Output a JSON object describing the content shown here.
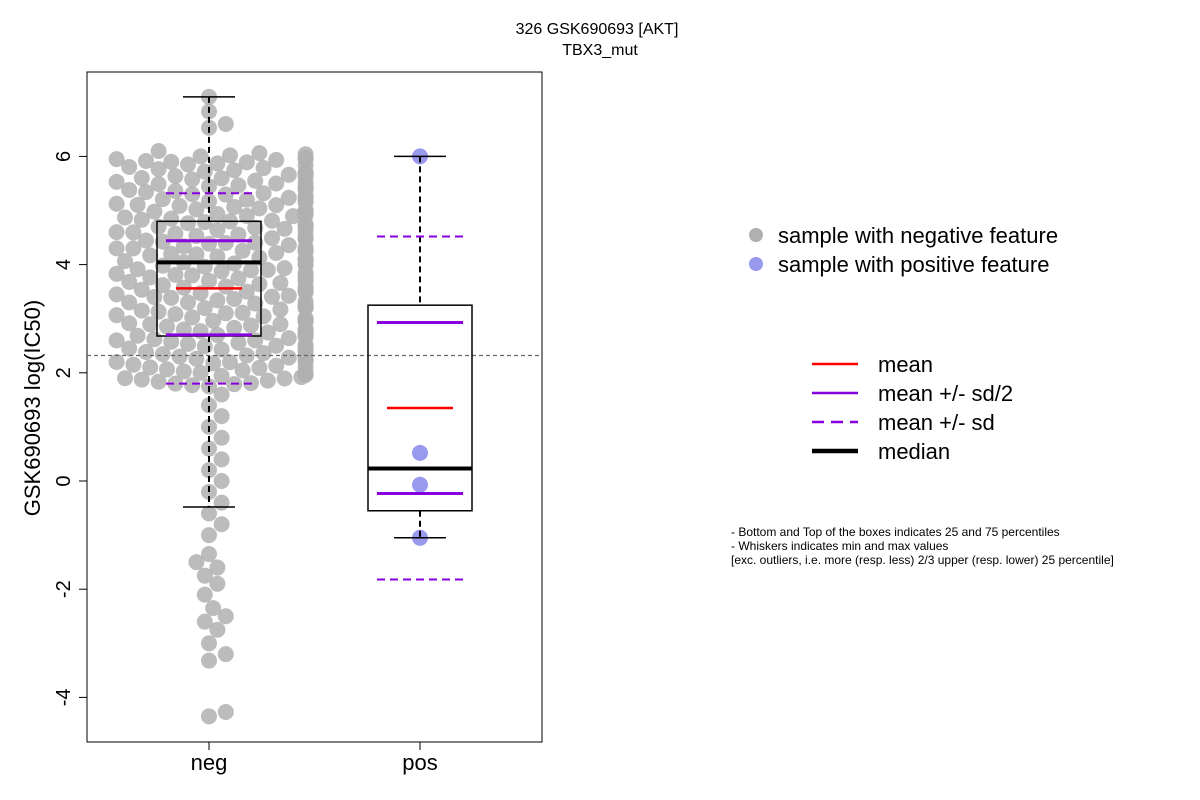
{
  "chart_data": {
    "type": "box",
    "title": "326 GSK690693 [AKT]",
    "subtitle": "TBX3_mut",
    "ylabel": "GSK690693 log(IC50)",
    "xlabel": "",
    "ylim": [
      -4.8,
      7.8
    ],
    "yticks": [
      -4,
      -2,
      0,
      2,
      4,
      6
    ],
    "ytick_labels": [
      "-4",
      "-2",
      "0",
      "2",
      "4",
      "6"
    ],
    "categories": [
      "neg",
      "pos"
    ],
    "reference_line": 2.32,
    "groups": [
      {
        "name": "neg",
        "color": "#b0b0b0",
        "whisker_low": -0.48,
        "q1": 2.68,
        "median": 4.04,
        "q3": 4.8,
        "whisker_high": 7.1,
        "mean": 3.56,
        "mean_minus_half_sd": 2.7,
        "mean_plus_half_sd": 4.44,
        "mean_minus_sd": 1.8,
        "mean_plus_sd": 5.32,
        "points": [
          7.1,
          6.83,
          6.53,
          6.6,
          6.1,
          5.95,
          5.9,
          5.7,
          5.6,
          5.5,
          5.4,
          5.3,
          5.2,
          5.1,
          5.0,
          4.9,
          4.8,
          4.7,
          4.6,
          4.5,
          4.4,
          4.3,
          4.2,
          4.1,
          4.0,
          3.9,
          3.8,
          3.7,
          3.6,
          3.5,
          3.4,
          3.3,
          3.2,
          3.1,
          3.0,
          2.9,
          2.8,
          2.7,
          2.6,
          2.5,
          2.4,
          2.3,
          2.2,
          2.1,
          2.0,
          1.9,
          1.8,
          1.6,
          1.4,
          1.2,
          1.0,
          0.8,
          0.6,
          0.4,
          0.2,
          0.0,
          -0.2,
          -0.4,
          -0.6,
          -0.8,
          -1.0,
          -1.35,
          -1.5,
          -1.6,
          -1.75,
          -1.9,
          -2.1,
          -2.35,
          -2.5,
          -2.6,
          -2.75,
          -3.0,
          -3.2,
          -3.32,
          -4.27,
          -4.35
        ]
      },
      {
        "name": "pos",
        "color": "#9999ee",
        "whisker_low": -1.05,
        "q1": -0.55,
        "median": 0.23,
        "q3": 3.25,
        "whisker_high": 6.0,
        "mean": 1.35,
        "mean_minus_half_sd": -0.23,
        "mean_plus_half_sd": 2.93,
        "mean_minus_sd": -1.82,
        "mean_plus_sd": 4.52,
        "points": [
          6.0,
          0.52,
          -0.07,
          -1.05
        ]
      }
    ],
    "legend_points": [
      {
        "label": "sample with negative feature",
        "color": "#b0b0b0"
      },
      {
        "label": "sample with positive feature",
        "color": "#9999ee"
      }
    ],
    "legend_lines": [
      {
        "label": "mean",
        "color": "#ff0000",
        "style": "solid",
        "weight": "normal"
      },
      {
        "label": "mean +/- sd/2",
        "color": "#8800dd",
        "style": "solid",
        "weight": "normal"
      },
      {
        "label": "mean +/- sd",
        "color": "#8800dd",
        "style": "dashed",
        "weight": "normal"
      },
      {
        "label": "median",
        "color": "#000000",
        "style": "solid",
        "weight": "bold"
      }
    ],
    "notes": [
      "- Bottom and Top of the boxes indicates 25 and 75 percentiles",
      "- Whiskers indicates min and max values",
      "[exc. outliers, i.e. more (resp. less) 2/3 upper (resp. lower) 25 percentile]"
    ]
  }
}
